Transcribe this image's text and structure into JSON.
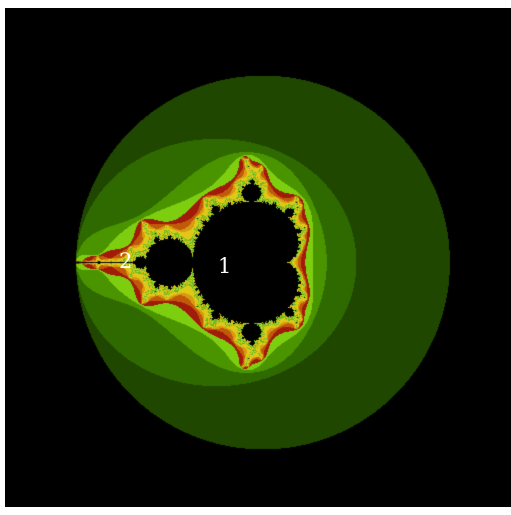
{
  "figure": {
    "subject": "mandelbrot-set-escape-time",
    "labels": {
      "main_cardioid": "1",
      "period2_bulb": "2"
    }
  },
  "colors": {
    "background": "#000000",
    "frame": "#ffffff",
    "set_interior": "#000000",
    "bands": [
      "#1f4700",
      "#2f6a00",
      "#4a9400",
      "#7ece10",
      "#a11a0a",
      "#c05a0a",
      "#d89a10",
      "#e0c818",
      "#66bb22"
    ]
  }
}
